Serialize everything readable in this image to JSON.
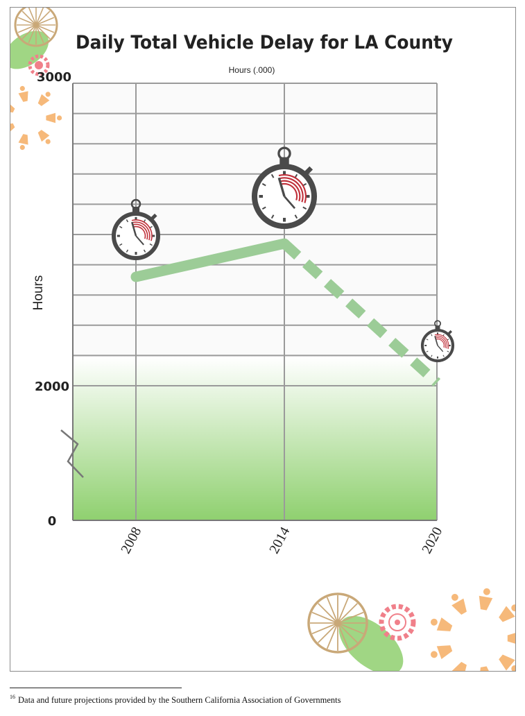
{
  "chart_data": {
    "type": "line",
    "title": "Daily Total Vehicle Delay for LA County",
    "subtitle": "Hours (.000)",
    "ylabel": "Hours",
    "xlabel": "",
    "categories": [
      "2008",
      "2014",
      "2020"
    ],
    "series": [
      {
        "values": [
          2360,
          2470,
          2010
        ],
        "styles": [
          "solid",
          "dashed"
        ]
      }
    ],
    "ylim": [
      0,
      3000
    ],
    "y_axis_break": true,
    "yticks": [
      "0",
      "2000",
      "3000"
    ],
    "grid": true
  },
  "footnote": {
    "number": "16",
    "text": "Data and future projections provided by the Southern California Association of Governments"
  },
  "colors": {
    "line": "#9ccc97",
    "fill_top": "#ffffff",
    "fill_bottom": "#8fd06f",
    "grid": "#9a9a9a",
    "clock": "#4a4a4a",
    "clock_accent": "#c0303a",
    "decor_orange": "#f6b97a",
    "decor_pink": "#f0808a",
    "decor_green": "#8fcf6f",
    "decor_wheel": "#c9a878"
  },
  "icons": [
    "stopwatch-icon",
    "wheel-icon",
    "gear-icon",
    "people-ring-icon"
  ]
}
